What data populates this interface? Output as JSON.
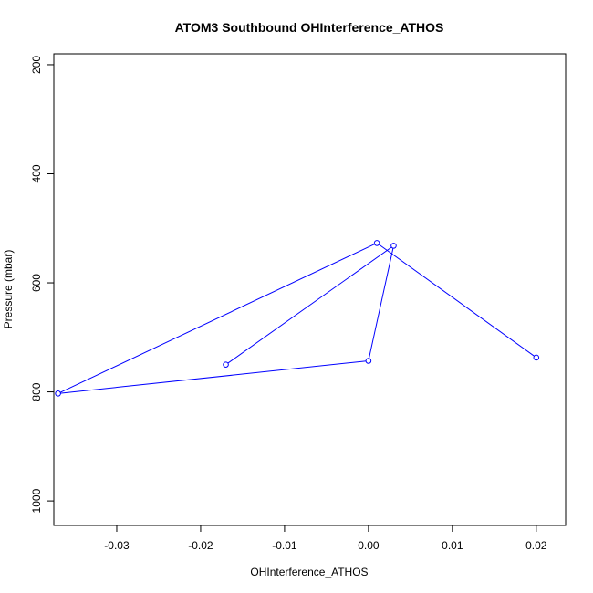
{
  "chart_data": {
    "type": "line",
    "title": "ATOM3 Southbound OHInterference_ATHOS",
    "xlabel": "OHInterference_ATHOS",
    "ylabel": "Pressure (mbar)",
    "xlim": [
      -0.0375,
      0.0235
    ],
    "ylim": [
      1045,
      180
    ],
    "y_reversed": true,
    "grid": false,
    "x_ticks": [
      -0.03,
      -0.02,
      -0.01,
      0.0,
      0.01,
      0.02
    ],
    "x_tick_labels": [
      "-0.03",
      "-0.02",
      "-0.01",
      "0.00",
      "0.01",
      "0.02"
    ],
    "y_ticks": [
      200,
      400,
      600,
      800,
      1000
    ],
    "y_tick_labels": [
      "200",
      "400",
      "600",
      "800",
      "1000"
    ],
    "series": [
      {
        "color": "#0000ff",
        "marker": "open-circle",
        "points": [
          {
            "x": 0.02,
            "y": 737
          },
          {
            "x": 0.001,
            "y": 527
          },
          {
            "x": -0.037,
            "y": 803
          },
          {
            "x": 0.0,
            "y": 743
          },
          {
            "x": 0.003,
            "y": 532
          },
          {
            "x": -0.017,
            "y": 750
          }
        ]
      }
    ]
  }
}
